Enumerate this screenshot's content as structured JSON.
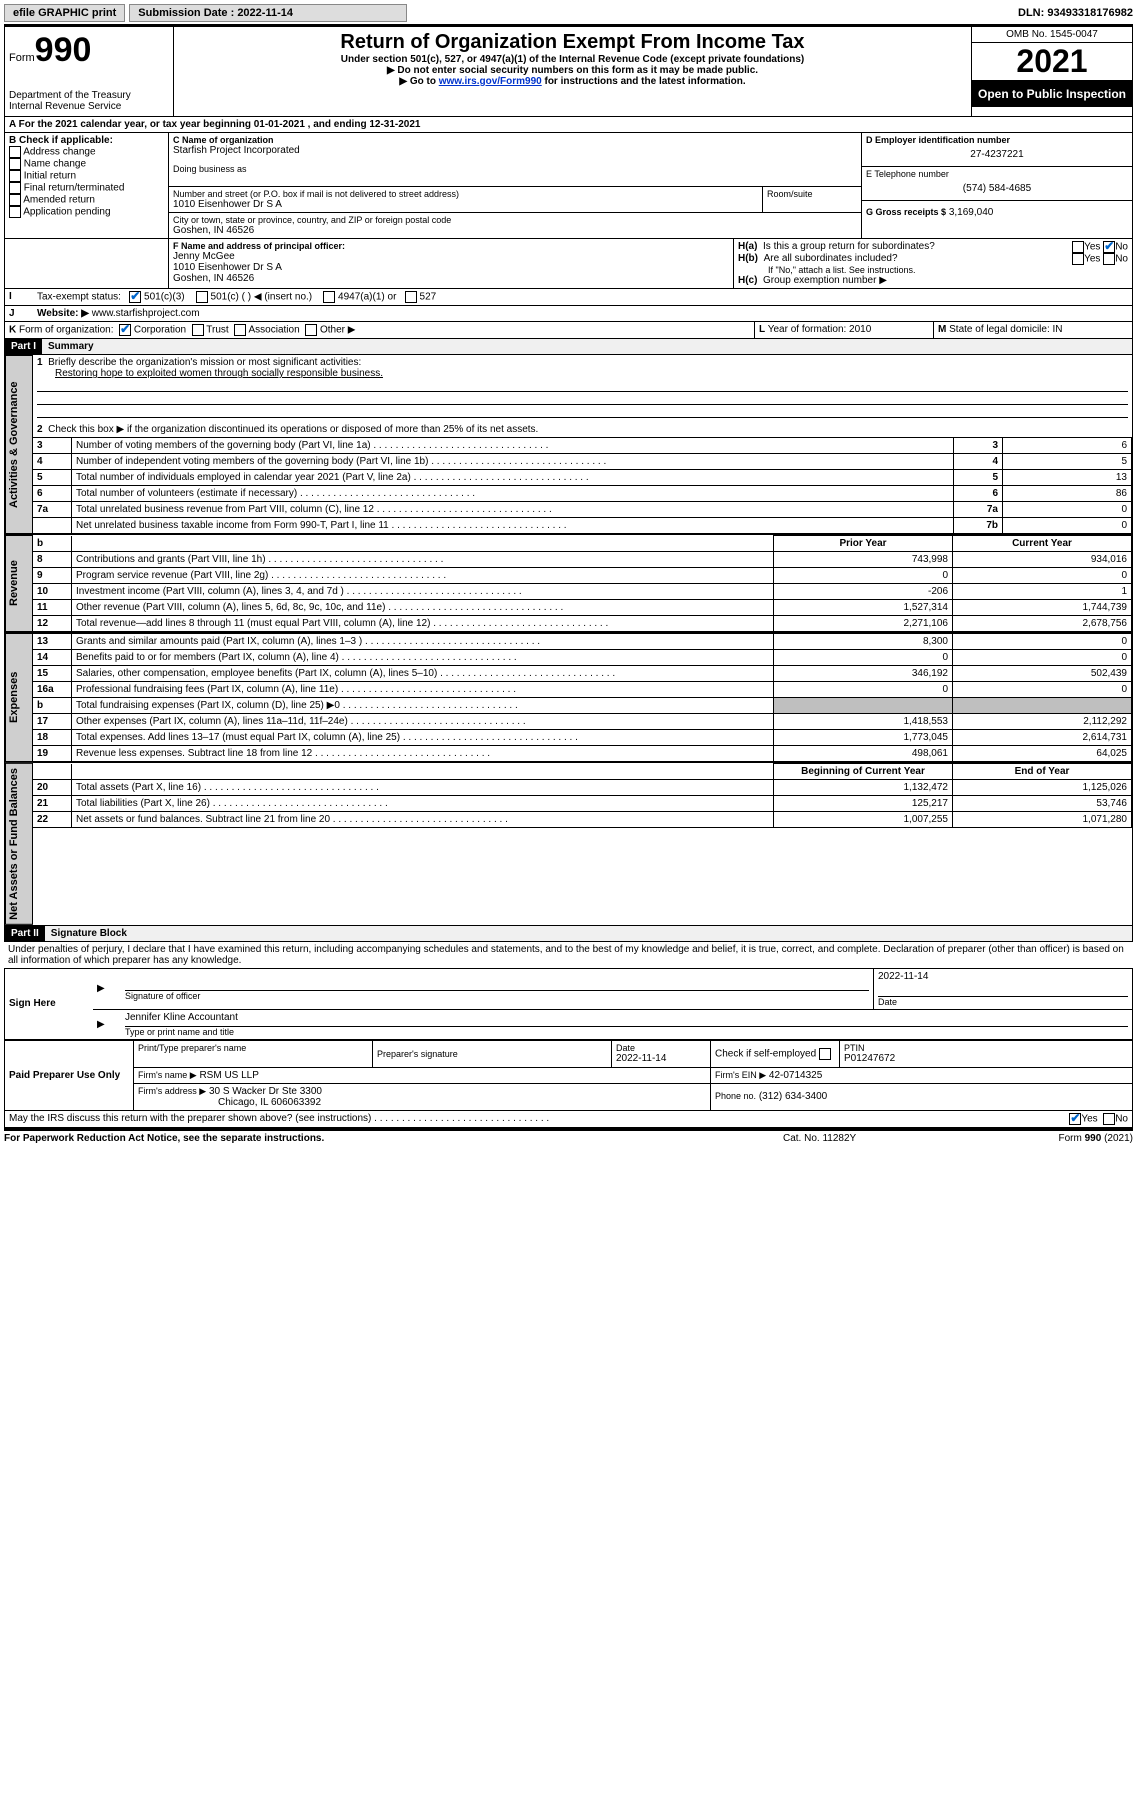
{
  "topbar": {
    "efile_label": "efile GRAPHIC print",
    "submission_label": "Submission Date : 2022-11-14",
    "dln_label": "DLN: 93493318176982"
  },
  "header": {
    "form_word": "Form",
    "form_number": "990",
    "dept": "Department of the Treasury",
    "irs": "Internal Revenue Service",
    "title": "Return of Organization Exempt From Income Tax",
    "sub1": "Under section 501(c), 527, or 4947(a)(1) of the Internal Revenue Code (except private foundations)",
    "sub2": "Do not enter social security numbers on this form as it may be made public.",
    "sub3_pre": "Go to ",
    "sub3_link": "www.irs.gov/Form990",
    "sub3_post": " for instructions and the latest information.",
    "omb": "OMB No. 1545-0047",
    "year": "2021",
    "open": "Open to Public Inspection"
  },
  "lineA": {
    "label_a": "A",
    "text": "For the 2021 calendar year, or tax year beginning 01-01-2021    , and ending 12-31-2021"
  },
  "boxB": {
    "label": "B Check if applicable:",
    "addr": "Address change",
    "name": "Name change",
    "init": "Initial return",
    "final": "Final return/terminated",
    "amend": "Amended return",
    "app": "Application pending"
  },
  "boxC": {
    "label": "C Name of organization",
    "org": "Starfish Project Incorporated",
    "dba_label": "Doing business as",
    "street_label": "Number and street (or P.O. box if mail is not delivered to street address)",
    "room_label": "Room/suite",
    "street": "1010 Eisenhower Dr S A",
    "city_label": "City or town, state or province, country, and ZIP or foreign postal code",
    "city": "Goshen, IN  46526"
  },
  "boxD": {
    "label": "D Employer identification number",
    "value": "27-4237221"
  },
  "boxE": {
    "label": "E Telephone number",
    "value": "(574) 584-4685"
  },
  "boxG": {
    "label": "G Gross receipts $",
    "value": "3,169,040"
  },
  "boxF": {
    "label": "F Name and address of principal officer:",
    "name": "Jenny McGee",
    "street": "1010 Eisenhower Dr S A",
    "city": "Goshen, IN  46526"
  },
  "boxH": {
    "ha_label": "H(a)",
    "ha_text": "Is this a group return for subordinates?",
    "hb_label": "H(b)",
    "hb_text": "Are all subordinates included?",
    "hb_note": "If \"No,\" attach a list. See instructions.",
    "hc_label": "H(c)",
    "hc_text": "Group exemption number ▶",
    "yes": "Yes",
    "no": "No"
  },
  "lineI": {
    "label": "I",
    "text": "Tax-exempt status:",
    "c3": "501(c)(3)",
    "c_blank": "501(c) (   ) ◀ (insert no.)",
    "a1": "4947(a)(1) or",
    "s527": "527"
  },
  "lineJ": {
    "label": "J",
    "text": "Website: ▶",
    "value": "www.starfishproject.com"
  },
  "lineK": {
    "label": "K",
    "text": "Form of organization:",
    "corp": "Corporation",
    "trust": "Trust",
    "assoc": "Association",
    "other": "Other ▶"
  },
  "lineL": {
    "label": "L",
    "text": "Year of formation: 2010"
  },
  "lineM": {
    "label": "M",
    "text": "State of legal domicile: IN"
  },
  "part1": {
    "header": "Part I",
    "title": "Summary",
    "vtab_act": "Activities & Governance",
    "vtab_rev": "Revenue",
    "vtab_exp": "Expenses",
    "vtab_net": "Net Assets or Fund Balances",
    "q1": "Briefly describe the organization's mission or most significant activities:",
    "q1_ans": "Restoring hope to exploited women through socially responsible business.",
    "q2": "Check this box ▶     if the organization discontinued its operations or disposed of more than 25% of its net assets.",
    "rows_gov": [
      {
        "n": "3",
        "t": "Number of voting members of the governing body (Part VI, line 1a)",
        "box": "3",
        "v": "6"
      },
      {
        "n": "4",
        "t": "Number of independent voting members of the governing body (Part VI, line 1b)",
        "box": "4",
        "v": "5"
      },
      {
        "n": "5",
        "t": "Total number of individuals employed in calendar year 2021 (Part V, line 2a)",
        "box": "5",
        "v": "13"
      },
      {
        "n": "6",
        "t": "Total number of volunteers (estimate if necessary)",
        "box": "6",
        "v": "86"
      },
      {
        "n": "7a",
        "t": "Total unrelated business revenue from Part VIII, column (C), line 12",
        "box": "7a",
        "v": "0"
      },
      {
        "n": "",
        "t": "Net unrelated business taxable income from Form 990-T, Part I, line 11",
        "box": "7b",
        "v": "0"
      }
    ],
    "col_prior": "Prior Year",
    "col_curr": "Current Year",
    "rows_rev": [
      {
        "n": "8",
        "t": "Contributions and grants (Part VIII, line 1h)",
        "p": "743,998",
        "c": "934,016"
      },
      {
        "n": "9",
        "t": "Program service revenue (Part VIII, line 2g)",
        "p": "0",
        "c": "0"
      },
      {
        "n": "10",
        "t": "Investment income (Part VIII, column (A), lines 3, 4, and 7d )",
        "p": "-206",
        "c": "1"
      },
      {
        "n": "11",
        "t": "Other revenue (Part VIII, column (A), lines 5, 6d, 8c, 9c, 10c, and 11e)",
        "p": "1,527,314",
        "c": "1,744,739"
      },
      {
        "n": "12",
        "t": "Total revenue—add lines 8 through 11 (must equal Part VIII, column (A), line 12)",
        "p": "2,271,106",
        "c": "2,678,756"
      }
    ],
    "rows_exp": [
      {
        "n": "13",
        "t": "Grants and similar amounts paid (Part IX, column (A), lines 1–3 )",
        "p": "8,300",
        "c": "0"
      },
      {
        "n": "14",
        "t": "Benefits paid to or for members (Part IX, column (A), line 4)",
        "p": "0",
        "c": "0"
      },
      {
        "n": "15",
        "t": "Salaries, other compensation, employee benefits (Part IX, column (A), lines 5–10)",
        "p": "346,192",
        "c": "502,439"
      },
      {
        "n": "16a",
        "t": "Professional fundraising fees (Part IX, column (A), line 11e)",
        "p": "0",
        "c": "0"
      },
      {
        "n": "b",
        "t": "Total fundraising expenses (Part IX, column (D), line 25) ▶0",
        "p": "gray",
        "c": "gray"
      },
      {
        "n": "17",
        "t": "Other expenses (Part IX, column (A), lines 11a–11d, 11f–24e)",
        "p": "1,418,553",
        "c": "2,112,292"
      },
      {
        "n": "18",
        "t": "Total expenses. Add lines 13–17 (must equal Part IX, column (A), line 25)",
        "p": "1,773,045",
        "c": "2,614,731"
      },
      {
        "n": "19",
        "t": "Revenue less expenses. Subtract line 18 from line 12",
        "p": "498,061",
        "c": "64,025"
      }
    ],
    "col_beg": "Beginning of Current Year",
    "col_end": "End of Year",
    "rows_net": [
      {
        "n": "20",
        "t": "Total assets (Part X, line 16)",
        "p": "1,132,472",
        "c": "1,125,026"
      },
      {
        "n": "21",
        "t": "Total liabilities (Part X, line 26)",
        "p": "125,217",
        "c": "53,746"
      },
      {
        "n": "22",
        "t": "Net assets or fund balances. Subtract line 21 from line 20",
        "p": "1,007,255",
        "c": "1,071,280"
      }
    ]
  },
  "part2": {
    "header": "Part II",
    "title": "Signature Block",
    "perjury": "Under penalties of perjury, I declare that I have examined this return, including accompanying schedules and statements, and to the best of my knowledge and belief, it is true, correct, and complete. Declaration of preparer (other than officer) is based on all information of which preparer has any knowledge.",
    "sign_here": "Sign Here",
    "sig_officer": "Signature of officer",
    "date_label": "Date",
    "sig_date": "2022-11-14",
    "officer_name": "Jennifer Kline Accountant",
    "type_name": "Type or print name and title",
    "paid": "Paid Preparer Use Only",
    "prep_name_label": "Print/Type preparer's name",
    "prep_sig_label": "Preparer's signature",
    "prep_date_label": "Date",
    "prep_date": "2022-11-14",
    "check_if": "Check      if self-employed",
    "ptin_label": "PTIN",
    "ptin": "P01247672",
    "firm_name_label": "Firm's name    ▶",
    "firm_name": "RSM US LLP",
    "firm_ein_label": "Firm's EIN ▶",
    "firm_ein": "42-0714325",
    "firm_addr_label": "Firm's address ▶",
    "firm_addr1": "30 S Wacker Dr Ste 3300",
    "firm_addr2": "Chicago, IL  606063392",
    "phone_label": "Phone no.",
    "phone": "(312) 634-3400",
    "may_irs": "May the IRS discuss this return with the preparer shown above? (see instructions)",
    "yes": "Yes",
    "no": "No"
  },
  "footer": {
    "pra": "For Paperwork Reduction Act Notice, see the separate instructions.",
    "cat": "Cat. No. 11282Y",
    "form": "Form 990 (2021)"
  }
}
